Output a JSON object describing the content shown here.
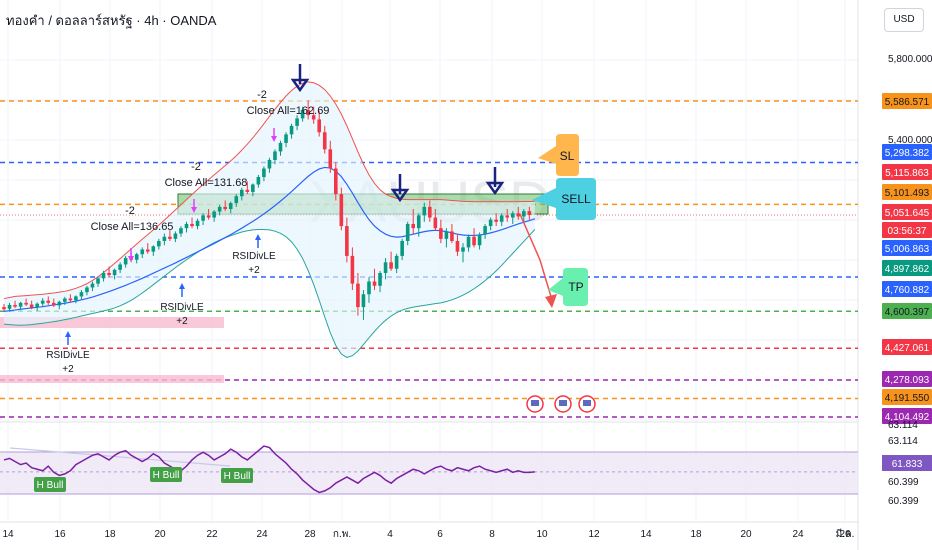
{
  "header": {
    "title": "ทองคำ / ดอลลาร์สหรัฐ · 4h · OANDA",
    "currency": "USD",
    "watermark": "XAUUSD"
  },
  "price_axis": {
    "ticks": [
      "5,800.000",
      "5,400.000"
    ],
    "labels": [
      {
        "text": "5,586.571",
        "value": 5586.571,
        "bg": "#f7931a",
        "fg": "#131722"
      },
      {
        "text": "5,298.382",
        "value": 5298.382,
        "bg": "#2962ff",
        "fg": "#ffffff"
      },
      {
        "text": "5,115.863",
        "value": 5115.863,
        "bg": "#f23645",
        "fg": "#ffffff"
      },
      {
        "text": "5,101.493",
        "value": 5101.493,
        "bg": "#f7931a",
        "fg": "#131722"
      },
      {
        "text": "5,051.645",
        "value": 5051.645,
        "bg": "#f23645",
        "fg": "#ffffff"
      },
      {
        "text": "03:56:37",
        "value": 5025,
        "bg": "#f23645",
        "fg": "#ffffff"
      },
      {
        "text": "5,006.863",
        "value": 5006.863,
        "bg": "#2962ff",
        "fg": "#ffffff"
      },
      {
        "text": "4,897.862",
        "value": 4897.862,
        "bg": "#089981",
        "fg": "#ffffff"
      },
      {
        "text": "4,760.882",
        "value": 4760.882,
        "bg": "#2962ff",
        "fg": "#ffffff"
      },
      {
        "text": "4,600.397",
        "value": 4600.397,
        "bg": "#4caf50",
        "fg": "#131722"
      },
      {
        "text": "4,427.061",
        "value": 4427.061,
        "bg": "#f23645",
        "fg": "#ffffff"
      },
      {
        "text": "4,278.093",
        "value": 4278.093,
        "bg": "#9c27b0",
        "fg": "#ffffff"
      },
      {
        "text": "4,191.550",
        "value": 4191.55,
        "bg": "#f7931a",
        "fg": "#131722"
      },
      {
        "text": "4,104.492",
        "value": 4104.492,
        "bg": "#9c27b0",
        "fg": "#ffffff"
      }
    ]
  },
  "rsi_axis": {
    "ticks": [
      "63.114",
      "63.114",
      "60.399",
      "60.399"
    ],
    "label": {
      "text": "61.833",
      "bg": "#7e57c2",
      "fg": "#ffffff"
    }
  },
  "time_axis": [
    "14",
    "16",
    "18",
    "20",
    "22",
    "24",
    "28",
    "ก.พ.",
    "4",
    "6",
    "8",
    "10",
    "12",
    "14",
    "18",
    "20",
    "24",
    "26",
    "มี.ค."
  ],
  "annotations": {
    "close_all": [
      "Close All=162.69",
      "Close All=131.68",
      "Close All=136.65"
    ],
    "minus_two": "-2",
    "rsidivle": [
      "RSIDivLE",
      "RSIDivLE",
      "RSIDivLE"
    ],
    "plus_two": "+2",
    "sl": "SL",
    "sell": "SELL",
    "tp": "TP",
    "h_bull": [
      "H Bull",
      "H Bull",
      "H Bull"
    ]
  },
  "chart_data": {
    "type": "candlestick",
    "symbol": "XAUUSD",
    "timeframe": "4h",
    "source": "OANDA",
    "horizontal_levels": [
      {
        "value": 5586.571,
        "color": "#f7931a",
        "style": "dashed"
      },
      {
        "value": 5298.382,
        "color": "#2962ff",
        "style": "dashed"
      },
      {
        "value": 5101.493,
        "color": "#f7931a",
        "style": "dashed"
      },
      {
        "value": 4760.882,
        "color": "#2962ff",
        "style": "dashed"
      },
      {
        "value": 4600.397,
        "color": "#4caf50",
        "style": "dashed"
      },
      {
        "value": 4427.061,
        "color": "#f23645",
        "style": "dashed"
      },
      {
        "value": 4278.093,
        "color": "#9c27b0",
        "style": "dashed"
      },
      {
        "value": 4191.55,
        "color": "#f7931a",
        "style": "dashed"
      },
      {
        "value": 4104.492,
        "color": "#9c27b0",
        "style": "dashed"
      }
    ],
    "candles": [
      [
        4620,
        4635,
        4600,
        4610
      ],
      [
        4612,
        4640,
        4598,
        4630
      ],
      [
        4630,
        4650,
        4615,
        4622
      ],
      [
        4622,
        4645,
        4605,
        4640
      ],
      [
        4640,
        4660,
        4625,
        4632
      ],
      [
        4632,
        4650,
        4610,
        4618
      ],
      [
        4618,
        4642,
        4602,
        4636
      ],
      [
        4636,
        4662,
        4622,
        4650
      ],
      [
        4650,
        4670,
        4630,
        4640
      ],
      [
        4640,
        4660,
        4620,
        4628
      ],
      [
        4628,
        4650,
        4610,
        4645
      ],
      [
        4645,
        4668,
        4630,
        4660
      ],
      [
        4660,
        4680,
        4640,
        4652
      ],
      [
        4652,
        4675,
        4638,
        4670
      ],
      [
        4670,
        4700,
        4655,
        4690
      ],
      [
        4690,
        4720,
        4675,
        4712
      ],
      [
        4712,
        4740,
        4695,
        4730
      ],
      [
        4730,
        4765,
        4715,
        4755
      ],
      [
        4755,
        4790,
        4740,
        4780
      ],
      [
        4780,
        4810,
        4760,
        4770
      ],
      [
        4770,
        4800,
        4750,
        4795
      ],
      [
        4795,
        4830,
        4780,
        4820
      ],
      [
        4820,
        4860,
        4805,
        4850
      ],
      [
        4850,
        4880,
        4830,
        4842
      ],
      [
        4842,
        4875,
        4825,
        4868
      ],
      [
        4868,
        4900,
        4850,
        4890
      ],
      [
        4890,
        4920,
        4870,
        4880
      ],
      [
        4880,
        4910,
        4860,
        4905
      ],
      [
        4905,
        4940,
        4890,
        4930
      ],
      [
        4930,
        4965,
        4910,
        4950
      ],
      [
        4950,
        4980,
        4930,
        4940
      ],
      [
        4940,
        4975,
        4925,
        4965
      ],
      [
        4965,
        5000,
        4950,
        4990
      ],
      [
        4990,
        5020,
        4970,
        5010
      ],
      [
        5010,
        5040,
        4990,
        5000
      ],
      [
        5000,
        5035,
        4985,
        5025
      ],
      [
        5025,
        5060,
        5005,
        5050
      ],
      [
        5050,
        5080,
        5030,
        5040
      ],
      [
        5040,
        5075,
        5020,
        5068
      ],
      [
        5068,
        5100,
        5050,
        5090
      ],
      [
        5090,
        5120,
        5070,
        5080
      ],
      [
        5080,
        5115,
        5060,
        5108
      ],
      [
        5108,
        5150,
        5090,
        5140
      ],
      [
        5140,
        5180,
        5120,
        5170
      ],
      [
        5170,
        5210,
        5150,
        5160
      ],
      [
        5160,
        5200,
        5140,
        5195
      ],
      [
        5195,
        5240,
        5180,
        5230
      ],
      [
        5230,
        5280,
        5210,
        5270
      ],
      [
        5270,
        5320,
        5250,
        5310
      ],
      [
        5310,
        5360,
        5290,
        5350
      ],
      [
        5350,
        5400,
        5330,
        5390
      ],
      [
        5390,
        5440,
        5370,
        5430
      ],
      [
        5430,
        5480,
        5410,
        5470
      ],
      [
        5470,
        5520,
        5450,
        5505
      ],
      [
        5505,
        5560,
        5490,
        5545
      ],
      [
        5545,
        5590,
        5500,
        5520
      ],
      [
        5520,
        5560,
        5480,
        5500
      ],
      [
        5500,
        5540,
        5420,
        5440
      ],
      [
        5440,
        5470,
        5340,
        5360
      ],
      [
        5360,
        5400,
        5250,
        5270
      ],
      [
        5270,
        5300,
        5120,
        5150
      ],
      [
        5150,
        5180,
        4980,
        5000
      ],
      [
        5000,
        5040,
        4830,
        4860
      ],
      [
        4860,
        4900,
        4700,
        4730
      ],
      [
        4730,
        4780,
        4580,
        4620
      ],
      [
        4620,
        4700,
        4560,
        4680
      ],
      [
        4680,
        4760,
        4640,
        4740
      ],
      [
        4740,
        4800,
        4700,
        4720
      ],
      [
        4720,
        4790,
        4690,
        4780
      ],
      [
        4780,
        4850,
        4750,
        4830
      ],
      [
        4830,
        4880,
        4790,
        4800
      ],
      [
        4800,
        4870,
        4780,
        4860
      ],
      [
        4860,
        4940,
        4840,
        4930
      ],
      [
        4930,
        5020,
        4910,
        5010
      ],
      [
        5010,
        5080,
        4960,
        4990
      ],
      [
        4990,
        5060,
        4950,
        5050
      ],
      [
        5050,
        5110,
        5020,
        5090
      ],
      [
        5090,
        5120,
        5020,
        5040
      ],
      [
        5040,
        5080,
        4980,
        4990
      ],
      [
        4990,
        5030,
        4920,
        4940
      ],
      [
        4940,
        4990,
        4900,
        4975
      ],
      [
        4975,
        5010,
        4920,
        4930
      ],
      [
        4930,
        4960,
        4860,
        4880
      ],
      [
        4880,
        4920,
        4830,
        4900
      ],
      [
        4900,
        4960,
        4880,
        4950
      ],
      [
        4950,
        4990,
        4900,
        4910
      ],
      [
        4910,
        4970,
        4890,
        4960
      ],
      [
        4960,
        5010,
        4940,
        5000
      ],
      [
        5000,
        5040,
        4980,
        5030
      ],
      [
        5030,
        5060,
        5000,
        5020
      ],
      [
        5020,
        5060,
        5000,
        5050
      ],
      [
        5050,
        5080,
        5020,
        5040
      ],
      [
        5040,
        5070,
        5010,
        5060
      ],
      [
        5060,
        5090,
        5030,
        5045
      ],
      [
        5045,
        5080,
        5020,
        5070
      ],
      [
        5070,
        5090,
        5030,
        5051.645
      ]
    ],
    "ema": [
      4600,
      4603,
      4606,
      4610,
      4613,
      4616,
      4619,
      4622,
      4626,
      4630,
      4634,
      4638,
      4643,
      4648,
      4654,
      4660,
      4667,
      4675,
      4684,
      4693,
      4702,
      4712,
      4722,
      4733,
      4744,
      4755,
      4767,
      4779,
      4791,
      4803,
      4815,
      4827,
      4840,
      4853,
      4866,
      4879,
      4892,
      4905,
      4918,
      4932,
      4946,
      4960,
      4975,
      4990,
      5006,
      5022,
      5039,
      5057,
      5076,
      5096,
      5117,
      5139,
      5162,
      5186,
      5210,
      5233,
      5253,
      5268,
      5275,
      5272,
      5258,
      5232,
      5196,
      5155,
      5110,
      5068,
      5030,
      5000,
      4978,
      4962,
      4952,
      4948,
      4950,
      4956,
      4962,
      4968,
      4974,
      4978,
      4980,
      4978,
      4974,
      4968,
      4962,
      4958,
      4956,
      4956,
      4958,
      4962,
      4968,
      4975,
      4983,
      4992,
      5001,
      5010,
      5018,
      5026,
      5034
    ],
    "bb_upper": [
      4660,
      4665,
      4670,
      4672,
      4674,
      4676,
      4678,
      4680,
      4683,
      4686,
      4690,
      4694,
      4700,
      4708,
      4718,
      4730,
      4745,
      4762,
      4782,
      4803,
      4825,
      4847,
      4870,
      4893,
      4916,
      4938,
      4960,
      4982,
      5005,
      5028,
      5052,
      5076,
      5100,
      5124,
      5148,
      5172,
      5195,
      5218,
      5240,
      5262,
      5284,
      5306,
      5330,
      5356,
      5384,
      5414,
      5446,
      5480,
      5514,
      5548,
      5580,
      5610,
      5636,
      5656,
      5670,
      5676,
      5672,
      5660,
      5640,
      5610,
      5572,
      5525,
      5470,
      5410,
      5348,
      5290,
      5240,
      5200,
      5170,
      5150,
      5138,
      5130,
      5126,
      5124,
      5124,
      5124,
      5124,
      5124,
      5124,
      5124,
      5122,
      5120,
      5118,
      5116,
      5115,
      5114,
      5114,
      5114,
      5114,
      5114,
      5114,
      5114,
      5114,
      5114,
      5115,
      5115,
      5116
    ],
    "bb_lower": [
      4540,
      4538,
      4536,
      4535,
      4536,
      4538,
      4541,
      4544,
      4548,
      4552,
      4556,
      4561,
      4566,
      4572,
      4578,
      4584,
      4590,
      4596,
      4602,
      4608,
      4616,
      4626,
      4638,
      4652,
      4668,
      4686,
      4705,
      4725,
      4745,
      4765,
      4785,
      4805,
      4824,
      4842,
      4860,
      4877,
      4893,
      4908,
      4922,
      4934,
      4945,
      4955,
      4964,
      4972,
      4978,
      4982,
      4984,
      4984,
      4982,
      4976,
      4966,
      4950,
      4926,
      4892,
      4848,
      4792,
      4726,
      4652,
      4574,
      4500,
      4440,
      4400,
      4384,
      4392,
      4414,
      4444,
      4476,
      4506,
      4534,
      4558,
      4578,
      4594,
      4606,
      4614,
      4620,
      4624,
      4628,
      4632,
      4636,
      4640,
      4646,
      4654,
      4664,
      4676,
      4690,
      4706,
      4724,
      4744,
      4766,
      4790,
      4816,
      4844,
      4872,
      4900,
      4928,
      4956,
      4984
    ],
    "rsi": [
      62.6,
      62.7,
      62.5,
      62.3,
      62.4,
      62.1,
      62.0,
      61.9,
      62.2,
      61.8,
      61.6,
      61.7,
      61.9,
      62.3,
      62.5,
      62.7,
      62.9,
      63.0,
      62.8,
      62.6,
      62.9,
      63.1,
      63.2,
      62.9,
      62.7,
      62.5,
      62.7,
      63.0,
      62.8,
      62.4,
      62.2,
      62.0,
      61.9,
      62.2,
      62.6,
      62.9,
      63.1,
      62.9,
      62.6,
      62.8,
      63.0,
      63.3,
      63.1,
      62.8,
      62.6,
      62.9,
      63.2,
      63.5,
      63.4,
      63.0,
      62.7,
      62.4,
      62.0,
      61.7,
      61.3,
      61.0,
      60.7,
      60.5,
      60.6,
      60.8,
      61.1,
      61.3,
      61.5,
      61.3,
      61.1,
      61.4,
      61.6,
      61.8,
      61.6,
      61.3,
      61.1,
      61.4,
      61.6,
      61.8,
      62.0,
      61.9,
      61.7,
      61.9,
      62.1,
      62.2,
      62.0,
      61.9,
      62.1,
      62.0,
      61.9,
      62.1,
      62.2,
      62.0,
      61.9,
      61.8,
      61.9,
      62.0,
      61.8,
      61.9,
      61.8,
      61.8,
      61.833
    ],
    "rsi_band": [
      60.399,
      63.114
    ]
  }
}
